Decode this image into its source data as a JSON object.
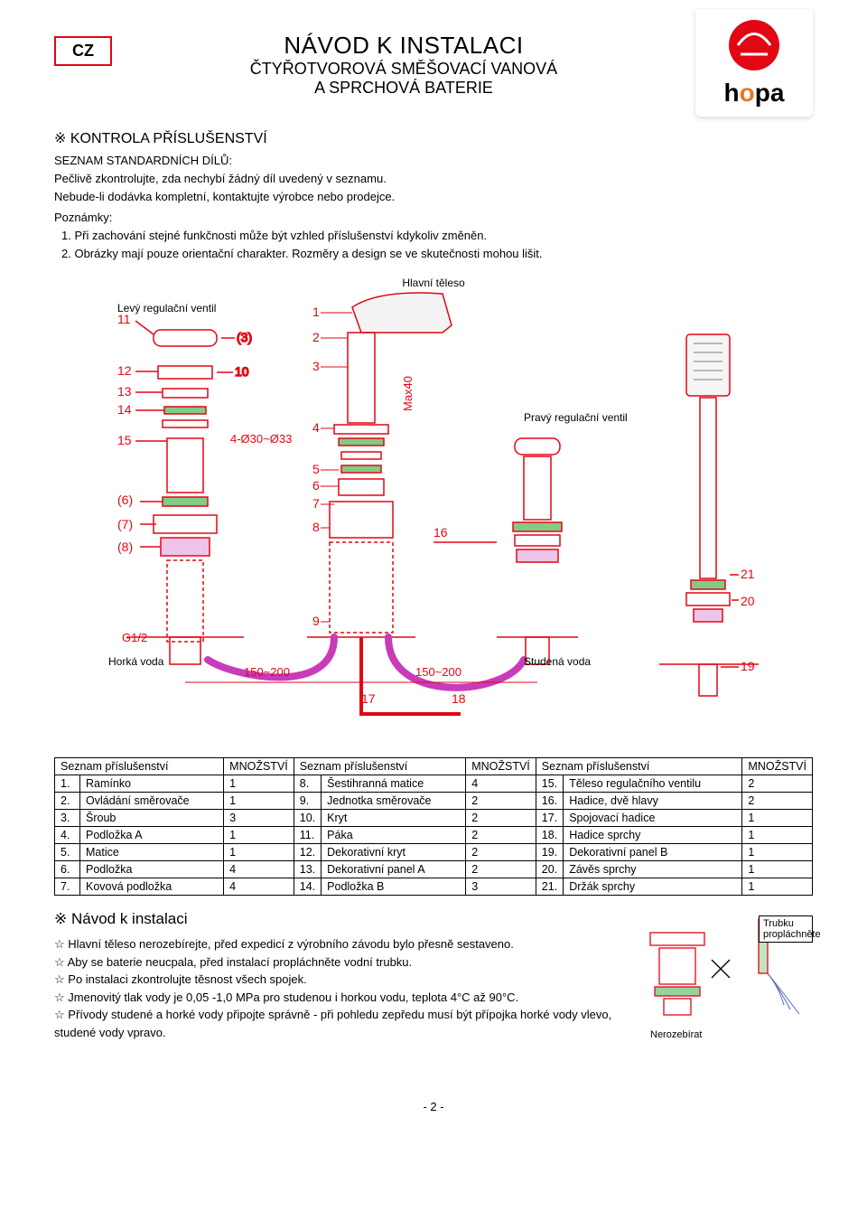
{
  "header": {
    "lang_code": "CZ",
    "title_main": "NÁVOD K INSTALACI",
    "title_sub1": "ČTYŘOTVOROVÁ SMĚŠOVACÍ VANOVÁ",
    "title_sub2": "A SPRCHOVÁ BATERIE",
    "logo_text1": "h",
    "logo_text2": "o",
    "logo_text3": "pa"
  },
  "section1": {
    "heading": "※ KONTROLA PŘÍSLUŠENSTVÍ",
    "line1": "SEZNAM STANDARDNÍCH DÍLŮ:",
    "line2": "Pečlivě zkontrolujte, zda nechybí žádný díl uvedený v seznamu.",
    "line3": "Nebude-li dodávka kompletní, kontaktujte výrobce nebo prodejce.",
    "notes_label": "Poznámky:",
    "note1": "1.   Při zachování stejné funkčnosti může být vzhled příslušenství kdykoliv změněn.",
    "note2": "2.   Obrázky mají pouze orientační charakter. Rozměry a design se ve skutečnosti mohou lišit."
  },
  "diagram": {
    "label_main": "Hlavní těleso",
    "label_left_valve": "Levý regulační ventil",
    "label_right_valve": "Pravý regulační ventil",
    "label_hot": "Horká voda",
    "label_cold": "Studená voda",
    "dim_hole": "4-Ø30~Ø33",
    "dim_max40": "Max40",
    "dim_150a": "150~200",
    "dim_150b": "150~200",
    "dim_g12": "G1/2",
    "colors": {
      "outline": "#e30613",
      "accent": "#2da836",
      "magenta": "#c83cb9"
    }
  },
  "table": {
    "hdr_name": "Seznam příslušenství",
    "hdr_qty": "MNOŽSTVÍ",
    "rows": [
      [
        [
          "1.",
          "Ramínko",
          "1"
        ],
        [
          "8.",
          "Šestihranná matice",
          "4"
        ],
        [
          "15.",
          "Těleso regulačního ventilu",
          "2"
        ]
      ],
      [
        [
          "2.",
          "Ovládání směrovače",
          "1"
        ],
        [
          "9.",
          "Jednotka směrovače",
          "2"
        ],
        [
          "16.",
          "Hadice, dvě hlavy",
          "2"
        ]
      ],
      [
        [
          "3.",
          "Šroub",
          "3"
        ],
        [
          "10.",
          "Kryt",
          "2"
        ],
        [
          "17.",
          "Spojovací hadice",
          "1"
        ]
      ],
      [
        [
          "4.",
          "Podložka A",
          "1"
        ],
        [
          "11.",
          "Páka",
          "2"
        ],
        [
          "18.",
          "Hadice sprchy",
          "1"
        ]
      ],
      [
        [
          "5.",
          "Matice",
          "1"
        ],
        [
          "12.",
          "Dekorativní kryt",
          "2"
        ],
        [
          "19.",
          "Dekorativní panel B",
          "1"
        ]
      ],
      [
        [
          "6.",
          "Podložka",
          "4"
        ],
        [
          "13.",
          "Dekorativní panel A",
          "2"
        ],
        [
          "20.",
          "Závěs sprchy",
          "1"
        ]
      ],
      [
        [
          "7.",
          "Kovová podložka",
          "4"
        ],
        [
          "14.",
          "Podložka B",
          "3"
        ],
        [
          "21.",
          "Držák sprchy",
          "1"
        ]
      ]
    ]
  },
  "install": {
    "heading": "※ Návod k instalaci",
    "items": [
      "Hlavní těleso nerozebírejte, před expedicí z výrobního závodu bylo přesně sestaveno.",
      "Aby se baterie neucpala, před instalací propláchněte vodní trubku.",
      "Po instalaci zkontrolujte těsnost všech spojek.",
      "Jmenovitý tlak vody je 0,05 -1,0 MPa pro studenou i horkou vodu, teplota 4°C až 90°C.",
      "Přívody studené a horké vody připojte správně - při pohledu zepředu musí být přípojka horké vody vlevo, studené vody vpravo."
    ],
    "fig_flush": "Trubku propláchněte",
    "fig_noopen": "Nerozebírat"
  },
  "page_num": "- 2 -"
}
